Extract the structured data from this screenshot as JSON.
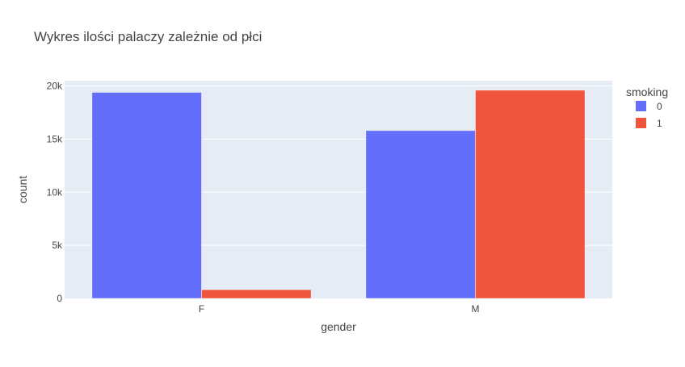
{
  "chart_data": {
    "type": "bar",
    "title": "Wykres ilości palaczy zależnie od płci",
    "xlabel": "gender",
    "ylabel": "count",
    "categories": [
      "F",
      "M"
    ],
    "ylim": [
      0,
      20500
    ],
    "yticks": [
      0,
      5000,
      10000,
      15000,
      20000
    ],
    "ytick_labels": [
      "0",
      "5k",
      "10k",
      "15k",
      "20k"
    ],
    "grid": true,
    "legend": {
      "title": "smoking",
      "placement": "right"
    },
    "series": [
      {
        "name": "0",
        "color": "#636efa",
        "values": [
          19400,
          15800
        ]
      },
      {
        "name": "1",
        "color": "#ef553b",
        "values": [
          830,
          19600
        ]
      }
    ]
  }
}
